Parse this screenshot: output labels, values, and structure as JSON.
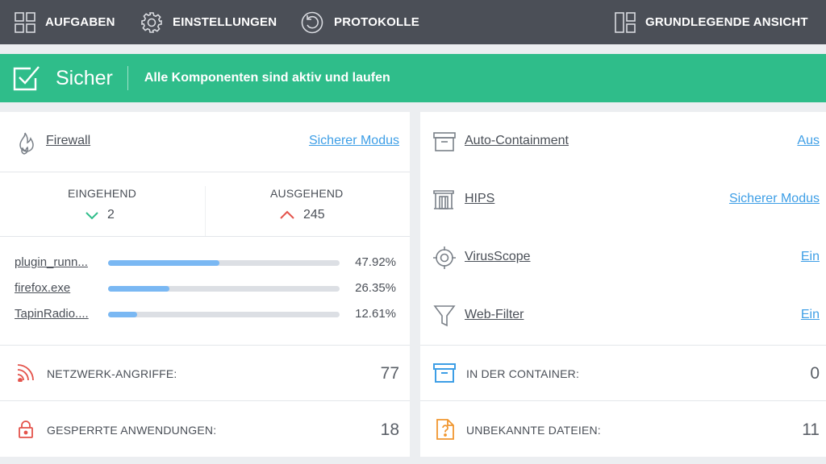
{
  "toolbar": {
    "tasks_label": "AUFGABEN",
    "settings_label": "EINSTELLUNGEN",
    "logs_label": "PROTOKOLLE",
    "view_label": "GRUNDLEGENDE ANSICHT"
  },
  "status": {
    "state": "Sicher",
    "message": "Alle Komponenten sind aktiv und laufen",
    "color": "#2fbd8a"
  },
  "firewall": {
    "name": "Firewall",
    "mode": "Sicherer Modus",
    "incoming_label": "EINGEHEND",
    "incoming_value": "2",
    "outgoing_label": "AUSGEHEND",
    "outgoing_value": "245",
    "apps": [
      {
        "name": "plugin_runn...",
        "percent_label": "47.92%",
        "percent": 47.92
      },
      {
        "name": "firefox.exe",
        "percent_label": "26.35%",
        "percent": 26.35
      },
      {
        "name": "TapinRadio....",
        "percent_label": "12.61%",
        "percent": 12.61
      }
    ]
  },
  "stats_left": [
    {
      "label": "NETZWERK-ANGRIFFE:",
      "value": "77",
      "icon": "wifi-attack-icon"
    },
    {
      "label": "GESPERRTE ANWENDUNGEN:",
      "value": "18",
      "icon": "lock-icon"
    }
  ],
  "components": [
    {
      "name": "Auto-Containment",
      "state": "Aus",
      "icon": "container-box-icon"
    },
    {
      "name": "HIPS",
      "state": "Sicherer Modus",
      "icon": "hips-gate-icon"
    },
    {
      "name": "VirusScope",
      "state": "Ein",
      "icon": "crosshair-icon"
    },
    {
      "name": "Web-Filter",
      "state": "Ein",
      "icon": "funnel-icon"
    }
  ],
  "stats_right": [
    {
      "label": "IN DER CONTAINER:",
      "value": "0",
      "icon": "container-box-icon"
    },
    {
      "label": "UNBEKANNTE DATEIEN:",
      "value": "11",
      "icon": "unknown-file-icon"
    }
  ],
  "colors": {
    "toolbar_bg": "#4b4f57",
    "link": "#3d9ee6",
    "bar_fill": "#7ab8f3",
    "attack_red": "#e4534b",
    "container_blue": "#3d9ee6",
    "unknown_orange": "#f0962f",
    "incoming_green": "#2fbd8a",
    "outgoing_red": "#e4534b"
  }
}
